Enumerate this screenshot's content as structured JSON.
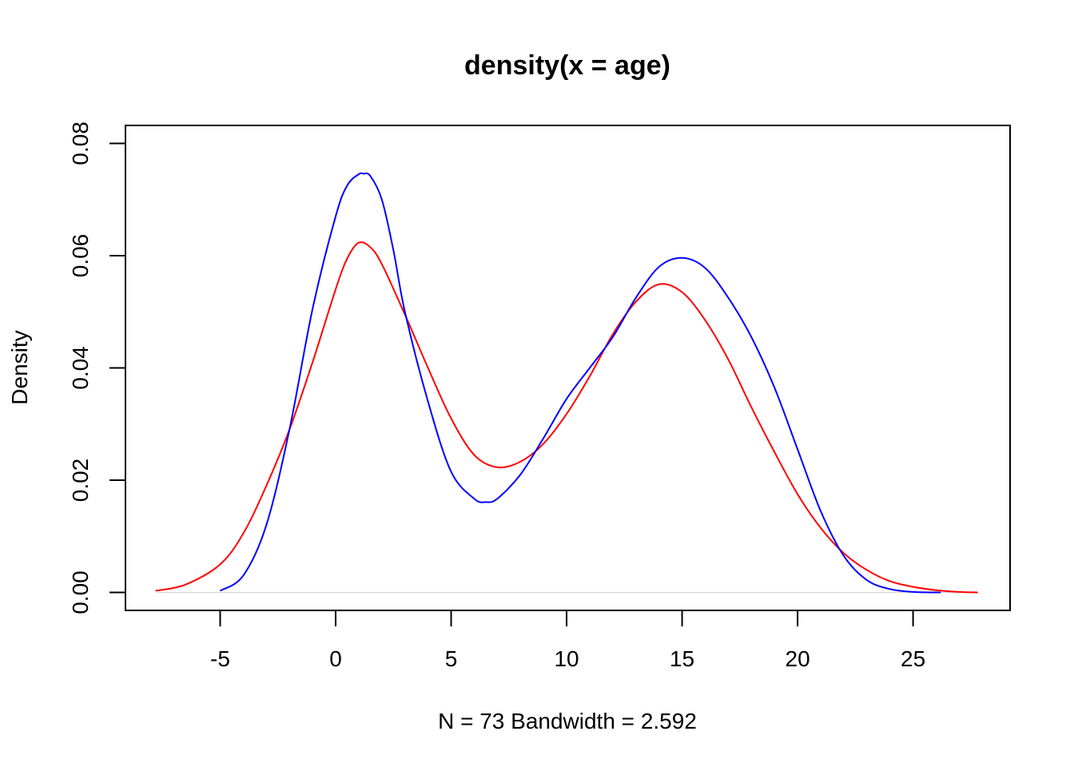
{
  "chart_data": {
    "type": "line",
    "title": "density(x = age)",
    "xlabel": "N = 73   Bandwidth = 2.592",
    "ylabel": "Density",
    "xlim": [
      -9.1,
      29.2
    ],
    "ylim": [
      -0.0032,
      0.0832
    ],
    "x_ticks": [
      -5,
      0,
      5,
      10,
      15,
      20,
      25
    ],
    "x_tick_labels": [
      "-5",
      "0",
      "5",
      "10",
      "15",
      "20",
      "25"
    ],
    "y_ticks": [
      0,
      0.02,
      0.04,
      0.06,
      0.08
    ],
    "y_tick_labels": [
      "0.00",
      "0.02",
      "0.04",
      "0.06",
      "0.08"
    ],
    "grid": false,
    "zero_line": true,
    "series": [
      {
        "color": "#ff0000",
        "x": [
          -7.8,
          -6.5,
          -5,
          -4,
          -3,
          -2,
          -1,
          0,
          0.5,
          1,
          1.5,
          2,
          3,
          4,
          5,
          6,
          7,
          8,
          9,
          10,
          11,
          12,
          13,
          14,
          15,
          16,
          17,
          18,
          19,
          20,
          21,
          22,
          23,
          24,
          25,
          26,
          27,
          27.8
        ],
        "y": [
          0.0003,
          0.0014,
          0.005,
          0.0105,
          0.019,
          0.029,
          0.041,
          0.054,
          0.0595,
          0.0623,
          0.0615,
          0.0585,
          0.0495,
          0.04,
          0.031,
          0.0245,
          0.0223,
          0.0233,
          0.0265,
          0.0318,
          0.0385,
          0.046,
          0.0518,
          0.0549,
          0.0535,
          0.0485,
          0.0415,
          0.033,
          0.025,
          0.0175,
          0.0115,
          0.007,
          0.004,
          0.002,
          0.001,
          0.0004,
          0.0001,
          0.0
        ]
      },
      {
        "color": "#0000ff",
        "x": [
          -5,
          -4,
          -3,
          -2,
          -1,
          0,
          0.5,
          1,
          1.2,
          1.5,
          2,
          2.5,
          3,
          4,
          5,
          6,
          6.5,
          7,
          8,
          9,
          10,
          11,
          12,
          13,
          14,
          15,
          16,
          17,
          18,
          19,
          20,
          21,
          22,
          23,
          24,
          25,
          26.2
        ],
        "y": [
          0.0003,
          0.003,
          0.012,
          0.029,
          0.0505,
          0.067,
          0.0725,
          0.0745,
          0.0746,
          0.0742,
          0.07,
          0.061,
          0.05,
          0.034,
          0.0215,
          0.0167,
          0.0161,
          0.0167,
          0.021,
          0.0275,
          0.0345,
          0.04,
          0.0455,
          0.0525,
          0.058,
          0.0596,
          0.0578,
          0.0525,
          0.0455,
          0.0365,
          0.0255,
          0.0145,
          0.0065,
          0.0022,
          0.0006,
          0.0001,
          0.0
        ]
      }
    ]
  }
}
